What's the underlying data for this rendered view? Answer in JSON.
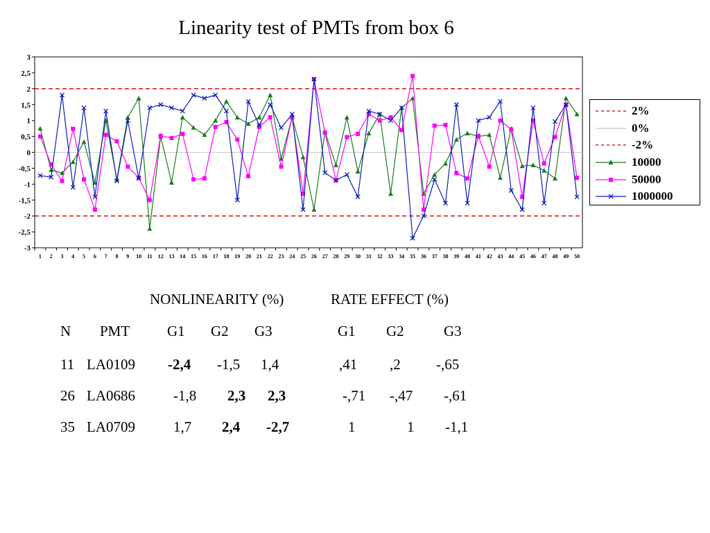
{
  "page": {
    "title": "Linearity test of PMTs from box 6"
  },
  "chart_data": {
    "type": "line",
    "title": "Linearity test of PMTs from box 6",
    "xlabel": "",
    "ylabel": "",
    "ylim": [
      -3,
      3
    ],
    "yticks": [
      "-3",
      "-2,5",
      "-2",
      "-1,5",
      "-1",
      "-0,5",
      "0",
      "0,5",
      "1",
      "1,5",
      "2",
      "2,5",
      "3"
    ],
    "x": [
      1,
      2,
      3,
      4,
      5,
      6,
      7,
      8,
      9,
      10,
      11,
      12,
      13,
      14,
      15,
      16,
      17,
      18,
      19,
      20,
      21,
      22,
      23,
      24,
      25,
      26,
      27,
      28,
      29,
      30,
      31,
      32,
      33,
      34,
      35,
      36,
      37,
      38,
      39,
      40,
      41,
      42,
      43,
      44,
      45,
      46,
      47,
      48,
      49,
      50
    ],
    "grid": false,
    "legend_position": "right",
    "reference_lines": [
      {
        "name": "2%",
        "value": 2,
        "color": "#e02020",
        "style": "dashed"
      },
      {
        "name": "0%",
        "value": 0,
        "color": "#c8c8c8",
        "style": "solid"
      },
      {
        "name": "-2%",
        "value": -2,
        "color": "#e02020",
        "style": "dashed"
      }
    ],
    "series": [
      {
        "name": "10000",
        "color": "#1a7a1a",
        "marker": "triangle",
        "values": [
          0.75,
          -0.55,
          -0.65,
          -0.3,
          0.33,
          -0.95,
          1.0,
          -0.85,
          1.1,
          1.7,
          -2.4,
          0.5,
          -0.95,
          1.1,
          0.78,
          0.55,
          1.0,
          1.6,
          1.1,
          0.9,
          1.1,
          1.8,
          -0.2,
          1.1,
          -0.15,
          -1.8,
          0.65,
          -0.4,
          1.1,
          -0.6,
          0.6,
          1.2,
          -1.3,
          1.4,
          1.7,
          -1.3,
          -0.7,
          -0.35,
          0.4,
          0.6,
          0.5,
          0.55,
          -0.8,
          0.75,
          -0.43,
          -0.4,
          -0.57,
          -0.82,
          1.7,
          1.2
        ]
      },
      {
        "name": "50000",
        "color": "#ff00ff",
        "marker": "square",
        "values": [
          0.5,
          -0.38,
          -0.9,
          0.74,
          -0.85,
          -1.8,
          0.55,
          0.35,
          -0.45,
          -0.8,
          -1.5,
          0.52,
          0.45,
          0.58,
          -0.85,
          -0.82,
          0.8,
          0.95,
          0.4,
          -0.75,
          0.8,
          1.1,
          -0.45,
          1.1,
          -1.3,
          2.3,
          0.62,
          -0.88,
          0.48,
          0.58,
          1.2,
          1.0,
          1.1,
          0.7,
          2.4,
          -1.8,
          0.84,
          0.86,
          -0.65,
          -0.82,
          0.52,
          -0.45,
          1.0,
          0.72,
          -1.4,
          1.0,
          -0.35,
          0.48,
          1.5,
          -0.8
        ]
      },
      {
        "name": "1000000",
        "color": "#0a1eb4",
        "marker": "x",
        "values": [
          -0.73,
          -0.78,
          1.8,
          -1.1,
          1.4,
          -1.4,
          1.3,
          -0.9,
          1.0,
          -0.82,
          1.4,
          1.5,
          1.4,
          1.3,
          1.8,
          1.7,
          1.8,
          1.3,
          -1.5,
          1.6,
          0.85,
          1.5,
          0.77,
          1.2,
          -1.8,
          2.3,
          -0.64,
          -0.88,
          -0.7,
          -1.4,
          1.3,
          1.2,
          1.0,
          1.4,
          -2.7,
          -2.0,
          -0.85,
          -1.6,
          1.5,
          -1.6,
          1.0,
          1.1,
          1.6,
          -1.2,
          -1.8,
          1.4,
          -1.6,
          0.97,
          1.5,
          -1.4
        ]
      }
    ]
  },
  "legend": {
    "items": [
      {
        "label": "2%",
        "color": "#e02020",
        "style": "dashed",
        "marker": ""
      },
      {
        "label": "0%",
        "color": "#c8c8c8",
        "style": "solid",
        "marker": ""
      },
      {
        "label": "-2%",
        "color": "#e02020",
        "style": "dashed",
        "marker": ""
      },
      {
        "label": "10000",
        "color": "#1a7a1a",
        "style": "solid",
        "marker": "triangle"
      },
      {
        "label": "50000",
        "color": "#ff00ff",
        "style": "solid",
        "marker": "square"
      },
      {
        "label": "1000000",
        "color": "#0a1eb4",
        "style": "solid",
        "marker": "x"
      }
    ]
  },
  "table": {
    "group_headers": {
      "nonlinearity": "NONLINEARITY (%)",
      "rate_effect": "RATE EFFECT (%)"
    },
    "columns": {
      "n": "N",
      "pmt": "PMT",
      "g1": "G1",
      "g2": "G2",
      "g3": "G3",
      "r1": "G1",
      "r2": "G2",
      "r3": "G3"
    },
    "rows": [
      {
        "n": "11",
        "pmt": "LA0109",
        "g1": "-2,4",
        "g2": "-1,5",
        "g3": "1,4",
        "r1": ",41",
        "r2": ",2",
        "r3": "-,65"
      },
      {
        "n": "26",
        "pmt": "LA0686",
        "g1": "-1,8",
        "g2": "2,3",
        "g3": "2,3",
        "r1": "-,71",
        "r2": "-,47",
        "r3": "-,61"
      },
      {
        "n": "35",
        "pmt": "LA0709",
        "g1": "1,7",
        "g2": "2,4",
        "g3": "-2,7",
        "r1": "1",
        "r2": "1",
        "r3": "-1,1"
      }
    ]
  }
}
